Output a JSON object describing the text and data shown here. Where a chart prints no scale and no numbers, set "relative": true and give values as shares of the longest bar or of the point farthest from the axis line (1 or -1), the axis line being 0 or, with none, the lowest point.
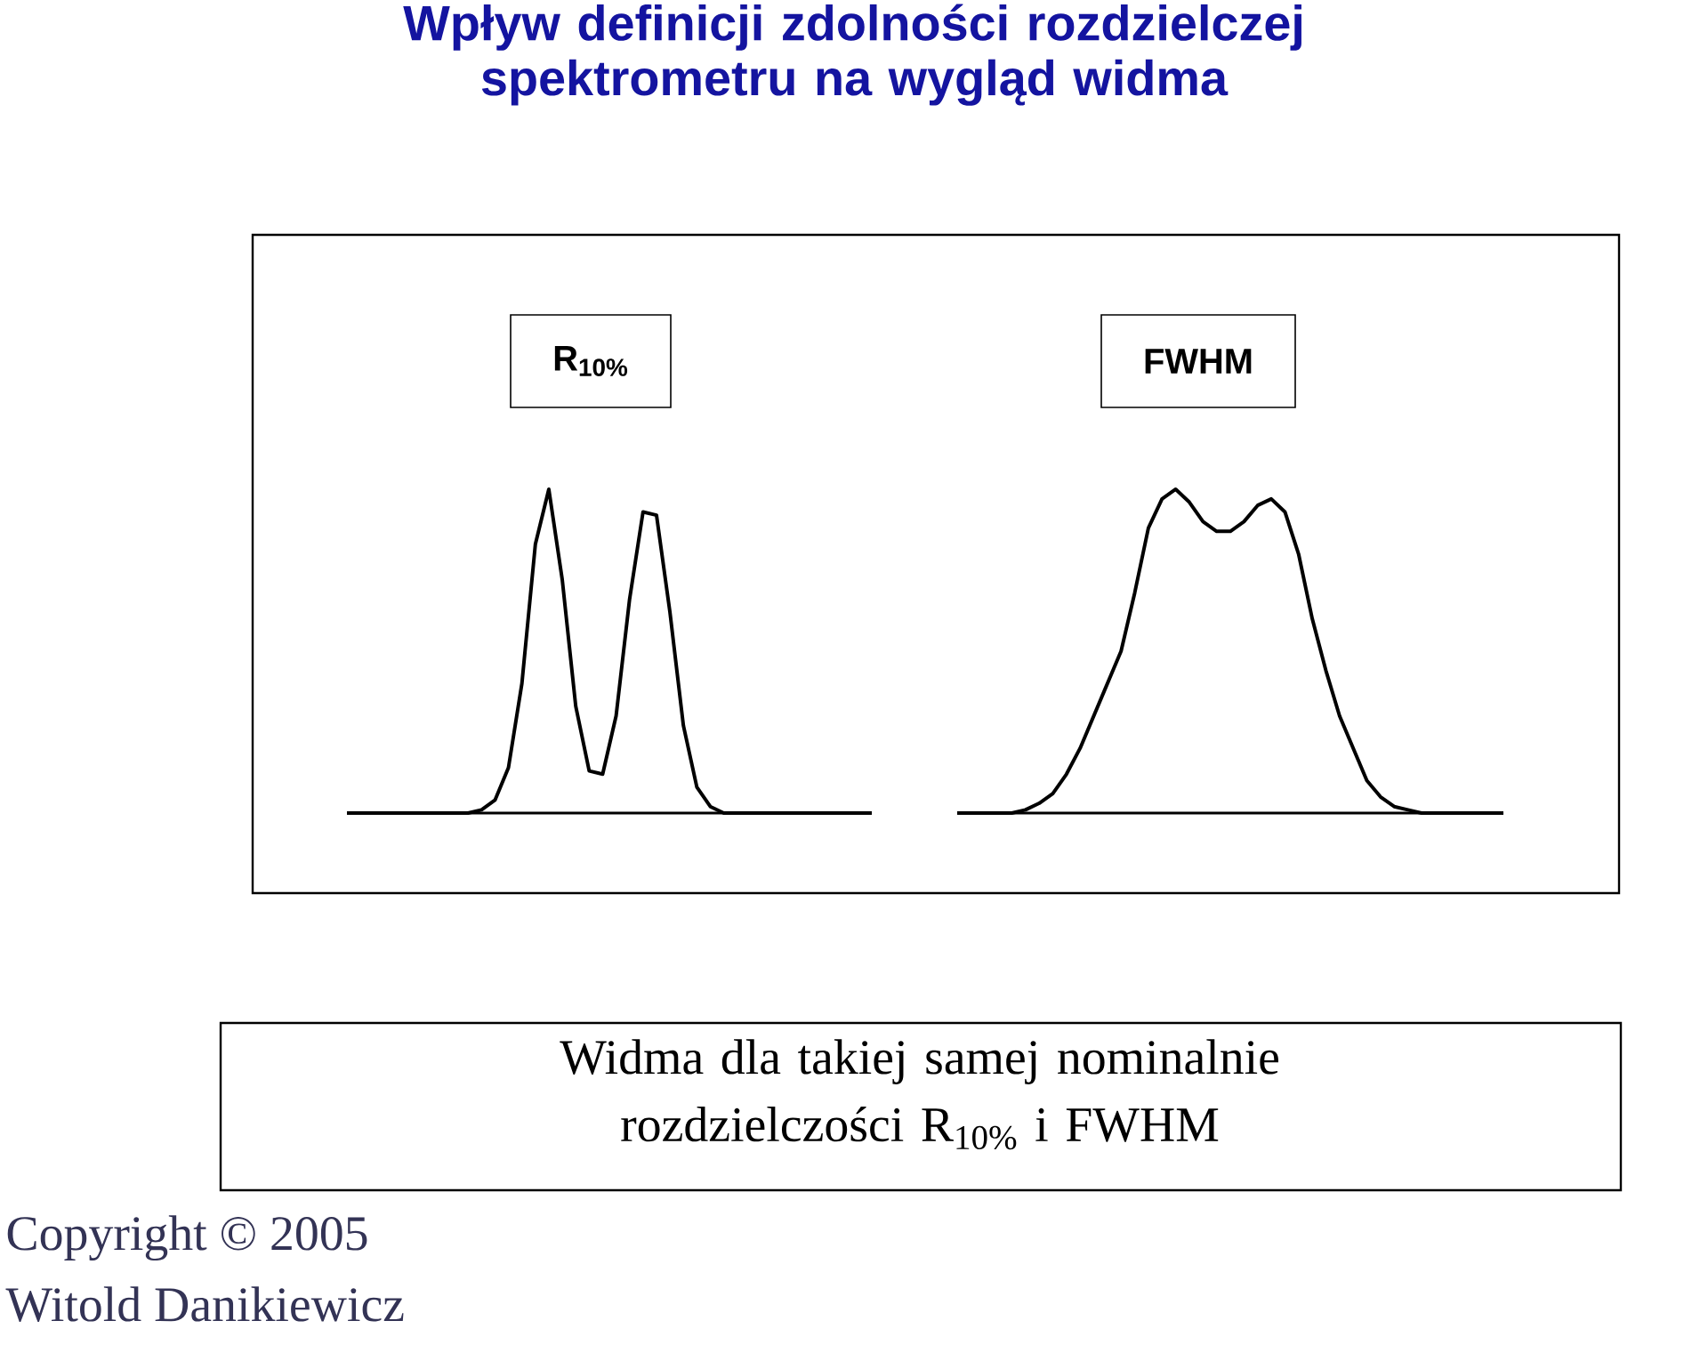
{
  "chart_data": [
    {
      "type": "other",
      "title": "Wpływ definicji zdolności rozdzielczej spektrometru na wygląd widma",
      "annotations": [
        "Widma dla takiej samej nominalnie rozdzielczości R$_{10%}$ i FWHM",
        "Copyright © 2005",
        "Witold Danikiewicz"
      ]
    },
    {
      "type": "line",
      "title": "R$_{10%}$",
      "relative": true,
      "color": "#000000",
      "categories": [
        null,
        null,
        null,
        null,
        null,
        null,
        null,
        null,
        null,
        null,
        null,
        null,
        null,
        null,
        null,
        null,
        null,
        null,
        null,
        null,
        null,
        null,
        null,
        null,
        null,
        null,
        null,
        null,
        null,
        null,
        null,
        null,
        null,
        null,
        null,
        null,
        null,
        null,
        null,
        null
      ],
      "values": [
        0,
        0,
        0,
        0,
        0,
        0,
        0,
        0,
        0,
        0,
        0.01,
        0.04,
        0.14,
        0.4,
        0.83,
        1.0,
        0.72,
        0.33,
        0.13,
        0.12,
        0.3,
        0.66,
        0.93,
        0.92,
        0.62,
        0.27,
        0.08,
        0.02,
        0,
        0,
        0,
        0,
        0,
        0,
        0,
        0,
        0,
        0,
        0,
        0
      ]
    },
    {
      "type": "line",
      "title": "FWHM",
      "relative": true,
      "color": "#000000",
      "categories": [
        null,
        null,
        null,
        null,
        null,
        null,
        null,
        null,
        null,
        null,
        null,
        null,
        null,
        null,
        null,
        null,
        null,
        null,
        null,
        null,
        null,
        null,
        null,
        null,
        null,
        null,
        null,
        null,
        null,
        null,
        null,
        null,
        null,
        null,
        null,
        null,
        null,
        null,
        null,
        null,
        null
      ],
      "values": [
        0,
        0,
        0,
        0,
        0,
        0.01,
        0.03,
        0.06,
        0.12,
        0.2,
        0.3,
        0.4,
        0.5,
        0.68,
        0.88,
        0.97,
        1.0,
        0.96,
        0.9,
        0.87,
        0.87,
        0.9,
        0.95,
        0.97,
        0.93,
        0.8,
        0.6,
        0.44,
        0.3,
        0.2,
        0.1,
        0.05,
        0.02,
        0.01,
        0,
        0,
        0,
        0,
        0,
        0,
        0
      ]
    }
  ]
}
